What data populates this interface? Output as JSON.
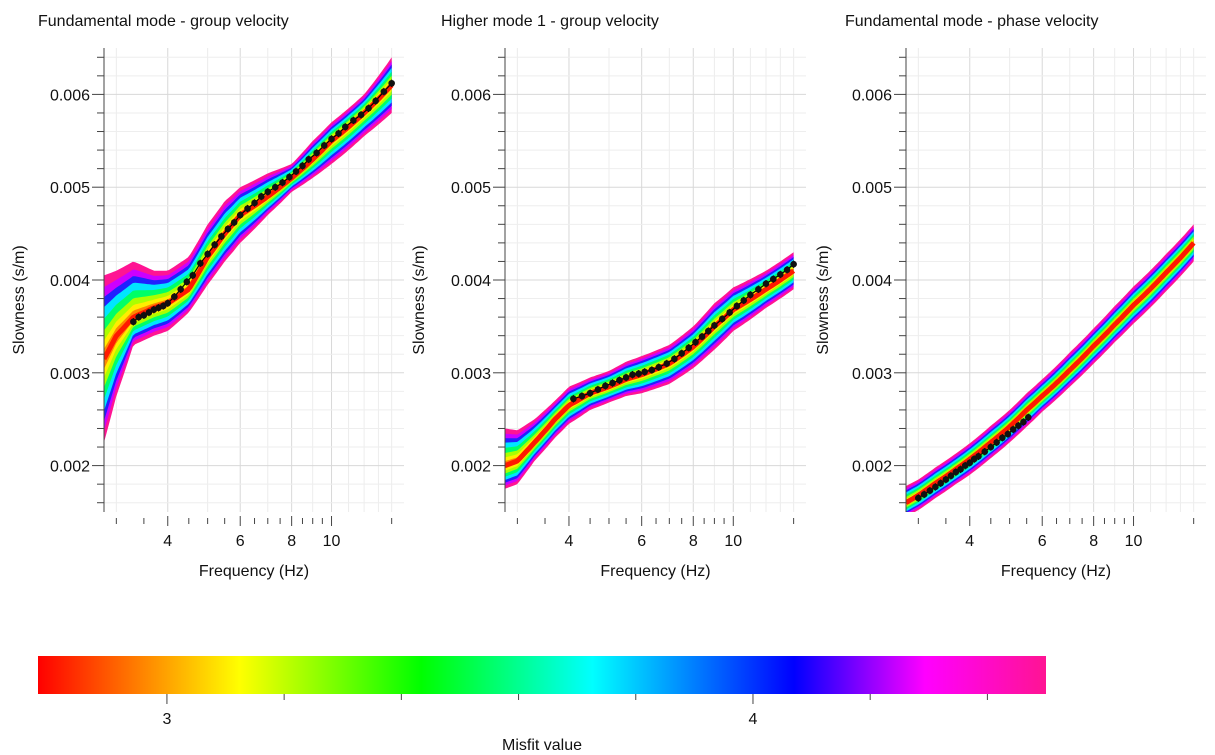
{
  "chart_data": [
    {
      "type": "area",
      "title": "Fundamental mode - group velocity",
      "xlabel": "Frequency (Hz)",
      "ylabel": "Slowness (s/m)",
      "x_scale": "log",
      "xlim": [
        2.8,
        15
      ],
      "ylim": [
        0.0015,
        0.0065
      ],
      "xticks": [
        {
          "value": 4,
          "label": "4"
        },
        {
          "value": 6,
          "label": "6"
        },
        {
          "value": 8,
          "label": "8"
        },
        {
          "value": 10,
          "label": "10"
        }
      ],
      "yticks": [
        {
          "value": 0.002,
          "label": "0.002"
        },
        {
          "value": 0.003,
          "label": "0.003"
        },
        {
          "value": 0.004,
          "label": "0.004"
        },
        {
          "value": 0.005,
          "label": "0.005"
        },
        {
          "value": 0.006,
          "label": "0.006"
        }
      ],
      "grid": true,
      "ensemble": {
        "x": [
          2.8,
          3.0,
          3.3,
          3.7,
          4.0,
          4.5,
          5.0,
          5.5,
          6.0,
          7.0,
          8.0,
          9.0,
          10.0,
          12.0,
          14.0
        ],
        "lower": [
          0.00225,
          0.00275,
          0.0033,
          0.0034,
          0.00345,
          0.00365,
          0.00395,
          0.0042,
          0.0044,
          0.0047,
          0.00495,
          0.0051,
          0.00525,
          0.00555,
          0.0058
        ],
        "upper": [
          0.00405,
          0.0041,
          0.0042,
          0.0041,
          0.0041,
          0.00425,
          0.0046,
          0.00485,
          0.005,
          0.00515,
          0.00525,
          0.0055,
          0.0057,
          0.006,
          0.0064
        ],
        "best": [
          0.00315,
          0.0034,
          0.0036,
          0.0037,
          0.00375,
          0.0039,
          0.00425,
          0.0045,
          0.0047,
          0.0049,
          0.0051,
          0.0053,
          0.0055,
          0.0058,
          0.0061
        ]
      },
      "observed": {
        "x": [
          3.3,
          3.4,
          3.5,
          3.6,
          3.7,
          3.8,
          3.9,
          4.0,
          4.15,
          4.3,
          4.45,
          4.6,
          4.8,
          5.0,
          5.2,
          5.4,
          5.6,
          5.8,
          6.0,
          6.25,
          6.5,
          6.75,
          7.0,
          7.3,
          7.6,
          7.9,
          8.2,
          8.5,
          8.8,
          9.2,
          9.6,
          10.0,
          10.4,
          10.8,
          11.3,
          11.8,
          12.3,
          12.8,
          13.4,
          14.0
        ],
        "y": [
          0.00355,
          0.0036,
          0.00362,
          0.00365,
          0.00368,
          0.0037,
          0.00372,
          0.00375,
          0.00382,
          0.0039,
          0.00398,
          0.00405,
          0.00418,
          0.00428,
          0.00438,
          0.00447,
          0.00455,
          0.00462,
          0.0047,
          0.00477,
          0.00483,
          0.0049,
          0.00495,
          0.005,
          0.00505,
          0.00511,
          0.00517,
          0.00523,
          0.0053,
          0.00537,
          0.00545,
          0.00552,
          0.00558,
          0.00565,
          0.00572,
          0.00578,
          0.00585,
          0.00593,
          0.00603,
          0.00612
        ]
      }
    },
    {
      "type": "area",
      "title": "Higher mode 1 - group velocity",
      "xlabel": "Frequency (Hz)",
      "ylabel": "Slowness (s/m)",
      "x_scale": "log",
      "xlim": [
        2.8,
        15
      ],
      "ylim": [
        0.0015,
        0.0065
      ],
      "xticks": [
        {
          "value": 4,
          "label": "4"
        },
        {
          "value": 6,
          "label": "6"
        },
        {
          "value": 8,
          "label": "8"
        },
        {
          "value": 10,
          "label": "10"
        }
      ],
      "yticks": [
        {
          "value": 0.002,
          "label": "0.002"
        },
        {
          "value": 0.003,
          "label": "0.003"
        },
        {
          "value": 0.004,
          "label": "0.004"
        },
        {
          "value": 0.005,
          "label": "0.005"
        },
        {
          "value": 0.006,
          "label": "0.006"
        }
      ],
      "grid": true,
      "ensemble": {
        "x": [
          2.8,
          3.0,
          3.3,
          3.7,
          4.0,
          4.5,
          5.0,
          5.5,
          6.0,
          7.0,
          8.0,
          9.0,
          10.0,
          12.0,
          14.0
        ],
        "lower": [
          0.00175,
          0.0018,
          0.00205,
          0.0023,
          0.00245,
          0.0026,
          0.00268,
          0.00275,
          0.00278,
          0.00288,
          0.00305,
          0.00325,
          0.00345,
          0.0037,
          0.0039
        ],
        "upper": [
          0.0024,
          0.00238,
          0.0025,
          0.0027,
          0.00285,
          0.00295,
          0.00302,
          0.00312,
          0.00318,
          0.0033,
          0.0035,
          0.00375,
          0.00392,
          0.0041,
          0.0043
        ],
        "best": [
          0.002,
          0.00205,
          0.00225,
          0.0025,
          0.00265,
          0.00278,
          0.00285,
          0.00293,
          0.00298,
          0.0031,
          0.00328,
          0.0035,
          0.00368,
          0.0039,
          0.0041
        ]
      },
      "observed": {
        "x": [
          4.1,
          4.3,
          4.5,
          4.7,
          4.9,
          5.1,
          5.3,
          5.5,
          5.7,
          5.9,
          6.1,
          6.35,
          6.6,
          6.9,
          7.2,
          7.5,
          7.8,
          8.1,
          8.4,
          8.7,
          9.0,
          9.4,
          9.8,
          10.2,
          10.6,
          11.0,
          11.5,
          12.0,
          12.5,
          13.0,
          13.5,
          14.0
        ],
        "y": [
          0.00272,
          0.00275,
          0.00278,
          0.00282,
          0.00286,
          0.00289,
          0.00292,
          0.00295,
          0.00298,
          0.00299,
          0.00301,
          0.00303,
          0.00306,
          0.0031,
          0.00315,
          0.00321,
          0.00327,
          0.00333,
          0.00339,
          0.00345,
          0.00351,
          0.00358,
          0.00365,
          0.00372,
          0.00378,
          0.00384,
          0.0039,
          0.00396,
          0.00401,
          0.00406,
          0.00411,
          0.00417
        ]
      }
    },
    {
      "type": "area",
      "title": "Fundamental mode - phase velocity",
      "xlabel": "Frequency (Hz)",
      "ylabel": "Slowness (s/m)",
      "x_scale": "log",
      "xlim": [
        2.8,
        15
      ],
      "ylim": [
        0.0015,
        0.0065
      ],
      "xticks": [
        {
          "value": 4,
          "label": "4"
        },
        {
          "value": 6,
          "label": "6"
        },
        {
          "value": 8,
          "label": "8"
        },
        {
          "value": 10,
          "label": "10"
        }
      ],
      "yticks": [
        {
          "value": 0.002,
          "label": "0.002"
        },
        {
          "value": 0.003,
          "label": "0.003"
        },
        {
          "value": 0.004,
          "label": "0.004"
        },
        {
          "value": 0.005,
          "label": "0.005"
        },
        {
          "value": 0.006,
          "label": "0.006"
        }
      ],
      "grid": true,
      "ensemble": {
        "x": [
          2.8,
          3.0,
          3.3,
          3.7,
          4.0,
          4.5,
          5.0,
          5.5,
          6.0,
          7.0,
          8.0,
          9.0,
          10.0,
          12.0,
          14.0
        ],
        "lower": [
          0.00145,
          0.00152,
          0.00165,
          0.0018,
          0.0019,
          0.00208,
          0.00225,
          0.00242,
          0.00258,
          0.00285,
          0.0031,
          0.00333,
          0.00353,
          0.00388,
          0.0042
        ],
        "upper": [
          0.00178,
          0.00185,
          0.00198,
          0.00213,
          0.00224,
          0.00243,
          0.0026,
          0.00278,
          0.00293,
          0.00322,
          0.00348,
          0.00372,
          0.00393,
          0.00428,
          0.0046
        ],
        "best": [
          0.0016,
          0.00168,
          0.00181,
          0.00196,
          0.00207,
          0.00225,
          0.00242,
          0.0026,
          0.00275,
          0.00303,
          0.00329,
          0.00352,
          0.00373,
          0.00408,
          0.0044
        ]
      },
      "observed": {
        "x": [
          3.0,
          3.1,
          3.2,
          3.3,
          3.4,
          3.5,
          3.6,
          3.7,
          3.8,
          3.9,
          4.0,
          4.1,
          4.2,
          4.35,
          4.5,
          4.65,
          4.8,
          4.95,
          5.1,
          5.25,
          5.4,
          5.55
        ],
        "y": [
          0.00165,
          0.00169,
          0.00173,
          0.00177,
          0.00181,
          0.00185,
          0.00189,
          0.00193,
          0.00196,
          0.002,
          0.00203,
          0.00207,
          0.0021,
          0.00215,
          0.0022,
          0.00225,
          0.0023,
          0.00234,
          0.00239,
          0.00243,
          0.00247,
          0.00252
        ]
      }
    },
    {
      "type": "heatmap",
      "subtype": "colorbar",
      "xlabel": "Misfit value",
      "range_visible": "approx 2.78 to 4.5",
      "ticks": [
        {
          "value": 3,
          "label": "3"
        },
        {
          "value": 4,
          "label": "4"
        }
      ],
      "colormap_stops": [
        "#ff0000",
        "#ff9900",
        "#ffff00",
        "#00ff00",
        "#00ffff",
        "#0000ff",
        "#ff00ff",
        "#ff1493"
      ]
    }
  ]
}
